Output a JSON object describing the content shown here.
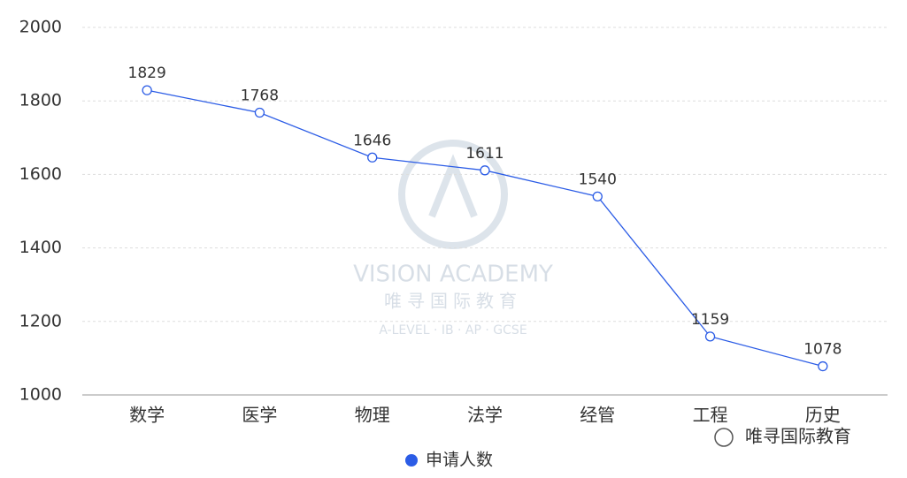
{
  "chart_data": {
    "type": "line",
    "categories": [
      "数学",
      "医学",
      "物理",
      "法学",
      "经管",
      "工程",
      "历史"
    ],
    "series": [
      {
        "name": "申请人数",
        "color": "#2b5ce6",
        "values": [
          1829,
          1768,
          1646,
          1611,
          1540,
          1159,
          1078
        ]
      }
    ],
    "ylim": [
      1000,
      2000
    ],
    "yticks": [
      1000,
      1200,
      1400,
      1600,
      1800,
      2000
    ],
    "grid": true,
    "legend": "bottom",
    "annotations": [
      "VISION ACADEMY",
      "唯寻国际教育",
      "A-LEVEL · IB · AP · GCSE",
      "唯寻国际教育"
    ]
  }
}
